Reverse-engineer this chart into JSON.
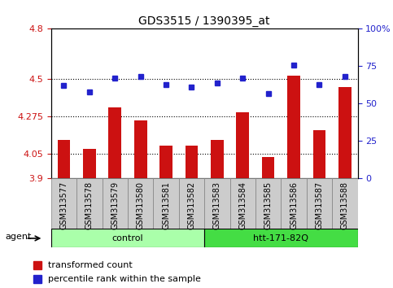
{
  "title": "GDS3515 / 1390395_at",
  "samples": [
    "GSM313577",
    "GSM313578",
    "GSM313579",
    "GSM313580",
    "GSM313581",
    "GSM313582",
    "GSM313583",
    "GSM313584",
    "GSM313585",
    "GSM313586",
    "GSM313587",
    "GSM313588"
  ],
  "transformed_count": [
    4.13,
    4.08,
    4.33,
    4.25,
    4.1,
    4.1,
    4.13,
    4.3,
    4.03,
    4.52,
    4.19,
    4.45
  ],
  "percentile_rank": [
    62,
    58,
    67,
    68,
    63,
    61,
    64,
    67,
    57,
    76,
    63,
    68
  ],
  "ylim_left": [
    3.9,
    4.8
  ],
  "yticks_left": [
    3.9,
    4.05,
    4.275,
    4.5,
    4.8
  ],
  "ytick_labels_left": [
    "3.9",
    "4.05",
    "4.275",
    "4.5",
    "4.8"
  ],
  "ylim_right": [
    0,
    100
  ],
  "yticks_right": [
    0,
    25,
    50,
    75,
    100
  ],
  "ytick_labels_right": [
    "0",
    "25",
    "50",
    "75",
    "100%"
  ],
  "bar_color": "#cc1111",
  "dot_color": "#2222cc",
  "groups": [
    {
      "label": "control",
      "start": 0,
      "end": 6,
      "color": "#aaffaa"
    },
    {
      "label": "htt-171-82Q",
      "start": 6,
      "end": 12,
      "color": "#44dd44"
    }
  ],
  "agent_label": "agent",
  "legend_bar_label": "transformed count",
  "legend_dot_label": "percentile rank within the sample",
  "grid_color": "#000000",
  "bg_color": "#ffffff",
  "tick_label_color_left": "#cc1111",
  "tick_label_color_right": "#2222cc",
  "sample_bg_color": "#cccccc"
}
